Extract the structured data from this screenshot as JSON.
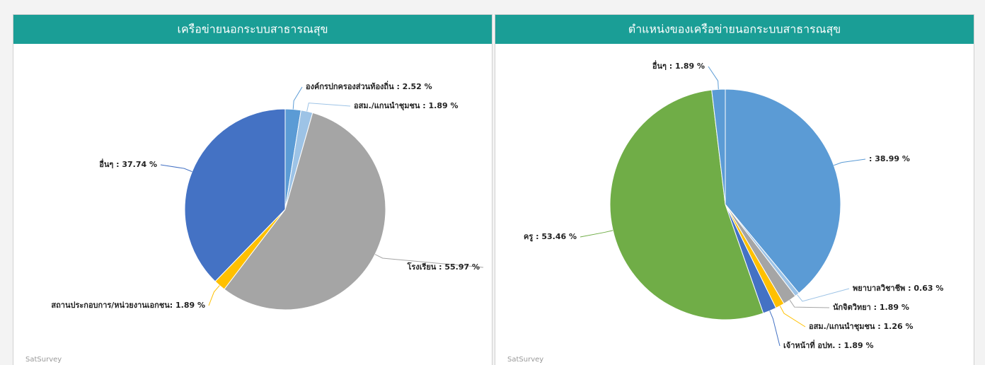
{
  "chart_data": [
    {
      "type": "pie",
      "title": "เครือข่ายนอกระบบสาธารณสุข",
      "source": "SatSurvey",
      "values": [
        2.52,
        1.89,
        55.97,
        1.89,
        37.74
      ],
      "value_labels": [
        "องค์กรปกครองส่วนท้องถิ่น : 2.52 %",
        "อสม./แกนนำชุมชน : 1.89 %",
        "โรงเรียน : 55.97 %",
        "สถานประกอบการ/หน่วยงานเอกชน: 1.89 %",
        "อื่นๆ : 37.74 %"
      ],
      "colors": [
        "#5b9bd5",
        "#9dc3e6",
        "#a5a5a5",
        "#ffc000",
        "#4472c4"
      ]
    },
    {
      "type": "pie",
      "title": "ตำแหน่งของเครือข่ายนอกระบบสาธารณสุข",
      "source": "SatSurvey",
      "values": [
        38.99,
        0.63,
        1.89,
        1.26,
        1.89,
        53.46,
        1.89
      ],
      "value_labels": [
        ": 38.99 %",
        "พยาบาลวิชาชีพ : 0.63 %",
        "นักจิตวิทยา : 1.89 %",
        "อสม./แกนนำชุมชน : 1.26 %",
        "เจ้าหน้าที่ อปท. : 1.89 %",
        "ครู : 53.46 %",
        "อื่นๆ : 1.89 %"
      ],
      "colors": [
        "#5b9bd5",
        "#9dc3e6",
        "#a5a5a5",
        "#ffc000",
        "#4472c4",
        "#70ad47",
        "#5b9bd5"
      ]
    }
  ]
}
